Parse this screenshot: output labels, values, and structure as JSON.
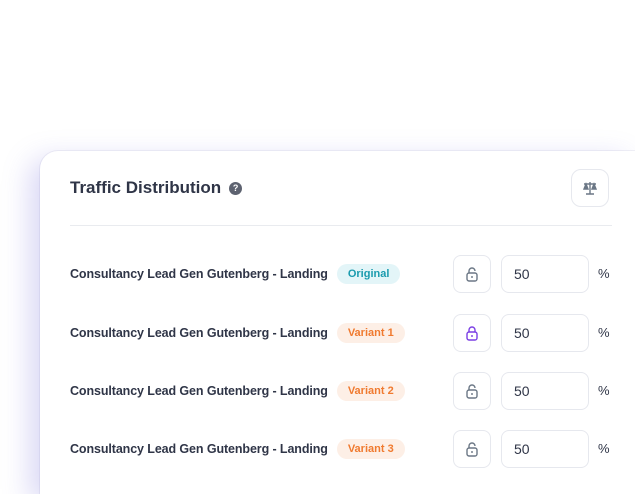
{
  "card": {
    "title": "Traffic Distribution",
    "help_icon": "question-circle-icon",
    "balance_icon": "scale-icon"
  },
  "rows": [
    {
      "name": "Consultancy Lead Gen Gutenberg - Landing",
      "badge": "Original",
      "locked": false,
      "value": "50",
      "unit": "%"
    },
    {
      "name": "Consultancy Lead Gen Gutenberg - Landing",
      "badge": "Variant 1",
      "locked": true,
      "value": "50",
      "unit": "%"
    },
    {
      "name": "Consultancy Lead Gen Gutenberg - Landing",
      "badge": "Variant 2",
      "locked": false,
      "value": "50",
      "unit": "%"
    },
    {
      "name": "Consultancy Lead Gen Gutenberg - Landing",
      "badge": "Variant 3",
      "locked": false,
      "value": "50",
      "unit": "%"
    }
  ],
  "colors": {
    "locked": "#7b3fe4",
    "unlocked": "#6b7785",
    "original_badge": "#1a9bae",
    "variant_badge": "#f07a2f"
  }
}
